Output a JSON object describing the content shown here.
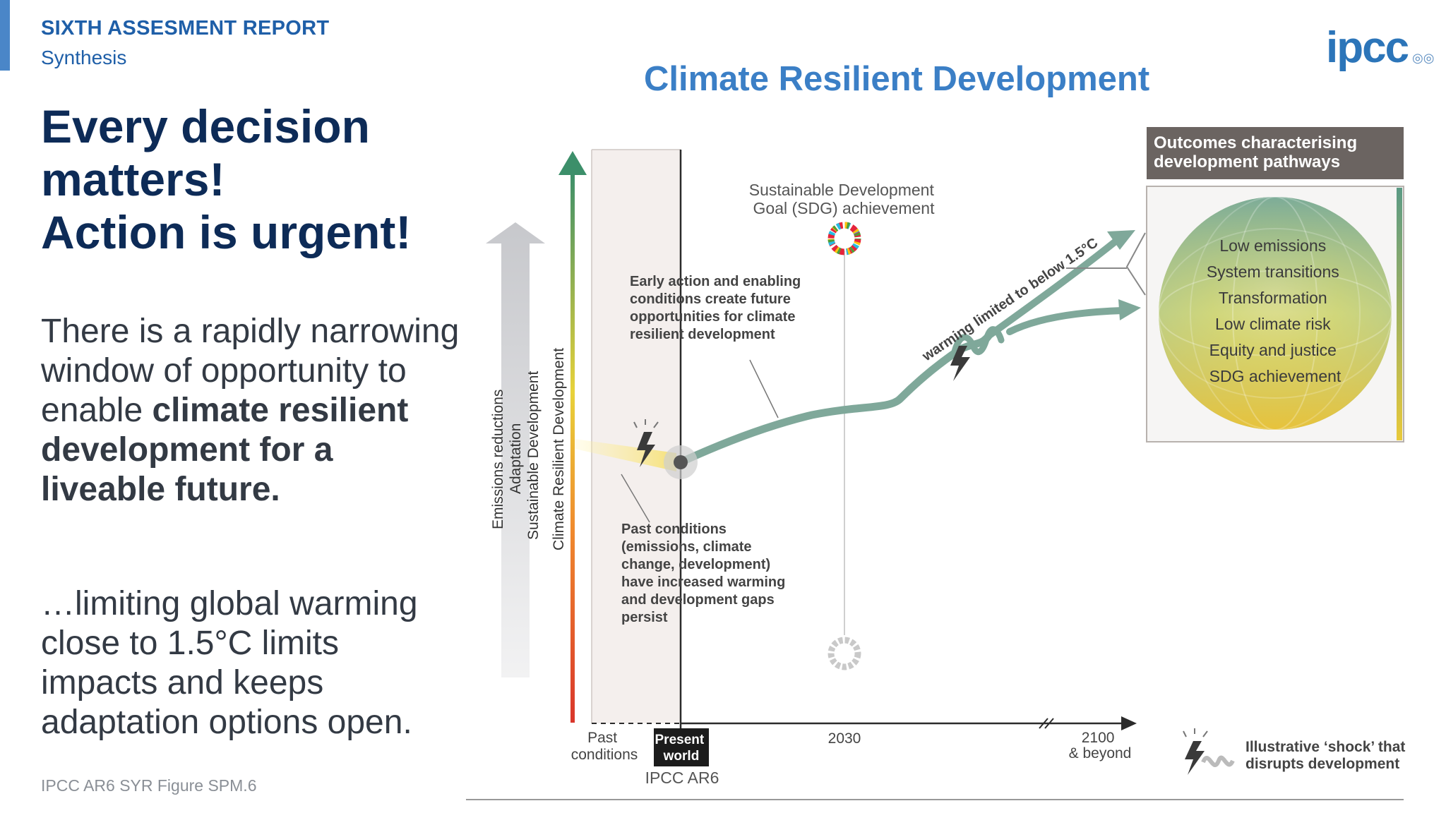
{
  "slide": {
    "report_title": "SIXTH ASSESMENT REPORT",
    "report_subtitle": "Synthesis",
    "headline": [
      "Every decision",
      "matters!",
      "Action is urgent!"
    ],
    "paragraph1": {
      "plain": "There is a rapidly narrowing window of opportunity to enable ",
      "bold": "climate resilient development for a liveable future."
    },
    "paragraph2": "…limiting global warming close to 1.5°C limits impacts and keeps adaptation options open.",
    "source": "IPCC AR6 SYR Figure SPM.6",
    "logo_text": "ipcc",
    "logo_marks": "◎◎"
  },
  "diagram": {
    "title": "Climate Resilient Development",
    "vertical_axis_labels": [
      "Emissions reductions",
      "Adaptation",
      "Sustainable Development",
      "Climate Resilient Development"
    ],
    "sdg_label": [
      "Sustainable Development",
      "Goal (SDG) achievement"
    ],
    "early_action_note": [
      "Early action and enabling",
      "conditions create future",
      "opportunities for climate",
      "resilient development"
    ],
    "past_conditions_note": [
      "Past conditions",
      "(emissions, climate",
      "change, development)",
      "have increased warming",
      "and development gaps",
      "persist"
    ],
    "pathway_label": "warming limited to below 1.5°C",
    "outcomes_header": [
      "Outcomes characterising",
      "development pathways"
    ],
    "outcomes": [
      "Low emissions",
      "System transitions",
      "Transformation",
      "Low climate risk",
      "Equity and justice",
      "SDG achievement"
    ],
    "x_labels": {
      "past": [
        "Past",
        "conditions"
      ],
      "present": [
        "Present",
        "world"
      ],
      "mid": "2030",
      "end": [
        "2100",
        "& beyond"
      ]
    },
    "present_caption": "IPCC AR6",
    "shock_legend": [
      "Illustrative ‘shock’ that",
      "disrupts development"
    ],
    "colors": {
      "pathway": "#7fa89a",
      "axis": "#2b2b2b",
      "header_bg": "#6b6461",
      "title": "#3b7fc6"
    }
  }
}
